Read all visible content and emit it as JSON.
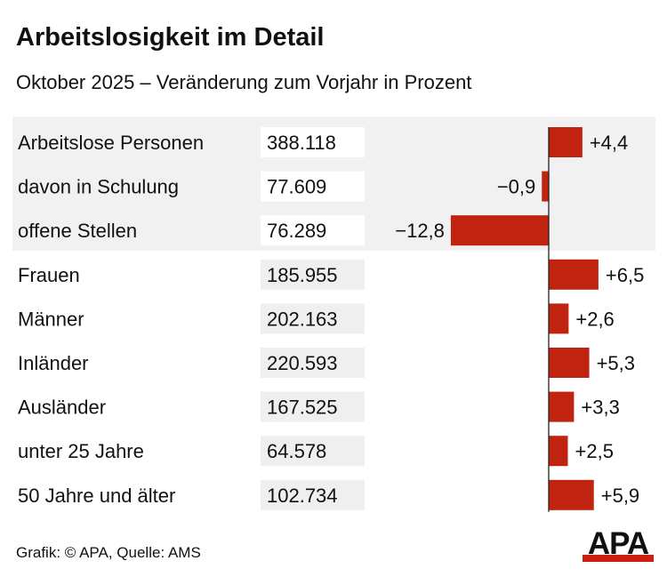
{
  "chart_data": {
    "type": "bar",
    "orientation": "horizontal",
    "title": "Arbeitslosigkeit im Detail",
    "subtitle": "Oktober 2025 – Veränderung zum Vorjahr in Prozent",
    "categories": [
      "Arbeitslose Personen",
      "davon in Schulung",
      "offene Stellen",
      "Frauen",
      "Männer",
      "Inländer",
      "Ausländer",
      "unter 25 Jahre",
      "50 Jahre und älter"
    ],
    "absolute_values": [
      "388.118",
      "77.609",
      "76.289",
      "185.955",
      "202.163",
      "220.593",
      "167.525",
      "64.578",
      "102.734"
    ],
    "values": [
      4.4,
      -0.9,
      -12.8,
      6.5,
      2.6,
      5.3,
      3.3,
      2.5,
      5.9
    ],
    "value_labels": [
      "+4,4",
      "−0,9",
      "−12,8",
      "+6,5",
      "+2,6",
      "+5,3",
      "+3,3",
      "+2,5",
      "+5,9"
    ],
    "highlighted_rows": [
      0,
      1,
      2
    ],
    "bar_color": "#c0230f",
    "band_color": "#f1f1f1",
    "xlim": [
      -12.8,
      6.5
    ],
    "grid": false
  },
  "source": "Grafik: © APA, Quelle: AMS",
  "logo": {
    "text": "APA",
    "color": "#cc1f10"
  }
}
